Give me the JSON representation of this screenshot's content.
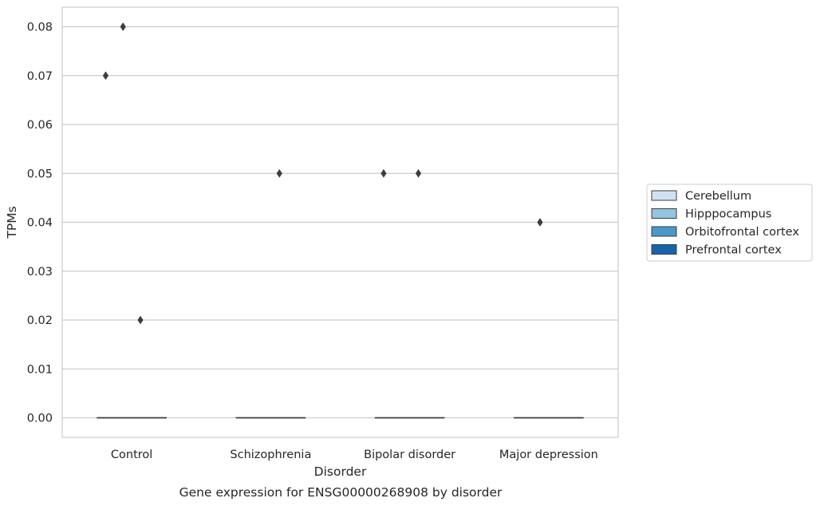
{
  "chart_data": {
    "type": "boxplot",
    "xlabel": "Disorder",
    "ylabel": "TPMs",
    "caption": "Gene expression for ENSG00000268908 by disorder",
    "ylim": [
      -0.004,
      0.084
    ],
    "yticks": [
      0.0,
      0.01,
      0.02,
      0.03,
      0.04,
      0.05,
      0.06,
      0.07,
      0.08
    ],
    "ytick_labels": [
      "0.00",
      "0.01",
      "0.02",
      "0.03",
      "0.04",
      "0.05",
      "0.06",
      "0.07",
      "0.08"
    ],
    "grid": "horizontal",
    "categories": [
      "Control",
      "Schizophrenia",
      "Bipolar disorder",
      "Major depression"
    ],
    "legend": {
      "placement": "right"
    },
    "series": [
      {
        "name": "Cerebellum",
        "color": "#d0e1f2",
        "boxes": [
          {
            "q1": 0,
            "median": 0,
            "q3": 0,
            "whislo": 0,
            "whishi": 0,
            "fliers": [
              0.07
            ]
          },
          {
            "q1": 0,
            "median": 0,
            "q3": 0,
            "whislo": 0,
            "whishi": 0,
            "fliers": []
          },
          {
            "q1": 0,
            "median": 0,
            "q3": 0,
            "whislo": 0,
            "whishi": 0,
            "fliers": [
              0.05
            ]
          },
          {
            "q1": 0,
            "median": 0,
            "q3": 0,
            "whislo": 0,
            "whishi": 0,
            "fliers": []
          }
        ]
      },
      {
        "name": "Hipppocampus",
        "color": "#94c4df",
        "boxes": [
          {
            "q1": 0,
            "median": 0,
            "q3": 0,
            "whislo": 0,
            "whishi": 0,
            "fliers": [
              0.08
            ]
          },
          {
            "q1": 0,
            "median": 0,
            "q3": 0,
            "whislo": 0,
            "whishi": 0,
            "fliers": []
          },
          {
            "q1": 0,
            "median": 0,
            "q3": 0,
            "whislo": 0,
            "whishi": 0,
            "fliers": []
          },
          {
            "q1": 0,
            "median": 0,
            "q3": 0,
            "whislo": 0,
            "whishi": 0,
            "fliers": [
              0.04
            ]
          }
        ]
      },
      {
        "name": "Orbitofrontal cortex",
        "color": "#4a98c9",
        "boxes": [
          {
            "q1": 0,
            "median": 0,
            "q3": 0,
            "whislo": 0,
            "whishi": 0,
            "fliers": [
              0.02
            ]
          },
          {
            "q1": 0,
            "median": 0,
            "q3": 0,
            "whislo": 0,
            "whishi": 0,
            "fliers": [
              0.05
            ]
          },
          {
            "q1": 0,
            "median": 0,
            "q3": 0,
            "whislo": 0,
            "whishi": 0,
            "fliers": [
              0.05
            ]
          },
          {
            "q1": 0,
            "median": 0,
            "q3": 0,
            "whislo": 0,
            "whishi": 0,
            "fliers": []
          }
        ]
      },
      {
        "name": "Prefrontal cortex",
        "color": "#1764ab",
        "boxes": [
          {
            "q1": 0,
            "median": 0,
            "q3": 0,
            "whislo": 0,
            "whishi": 0,
            "fliers": []
          },
          {
            "q1": 0,
            "median": 0,
            "q3": 0,
            "whislo": 0,
            "whishi": 0,
            "fliers": []
          },
          {
            "q1": 0,
            "median": 0,
            "q3": 0,
            "whislo": 0,
            "whishi": 0,
            "fliers": []
          },
          {
            "q1": 0,
            "median": 0,
            "q3": 0,
            "whislo": 0,
            "whishi": 0,
            "fliers": []
          }
        ]
      }
    ]
  }
}
